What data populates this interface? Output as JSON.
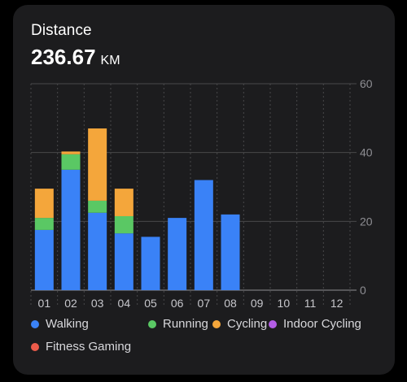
{
  "header": {
    "title": "Distance",
    "total_value": "236.67",
    "total_unit": "KM"
  },
  "colors": {
    "card_bg": "#1c1c1e",
    "grid": "#48484a",
    "walking": "#3a82f7",
    "running": "#5ac864",
    "cycling": "#f4a63b",
    "indoor_cycling": "#b35de6",
    "fitness_gaming": "#ec5b4a"
  },
  "chart_data": {
    "type": "bar",
    "stacked": true,
    "categories": [
      "01",
      "02",
      "03",
      "04",
      "05",
      "06",
      "07",
      "08",
      "09",
      "10",
      "11",
      "12"
    ],
    "series": [
      {
        "name": "Walking",
        "color": "#3a82f7",
        "values": [
          17.5,
          35,
          22.5,
          16.5,
          15.5,
          21,
          32,
          22,
          0,
          0,
          0,
          0
        ]
      },
      {
        "name": "Running",
        "color": "#5ac864",
        "values": [
          3.5,
          4.5,
          3.5,
          5,
          0,
          0,
          0,
          0,
          0,
          0,
          0,
          0
        ]
      },
      {
        "name": "Cycling",
        "color": "#f4a63b",
        "values": [
          8.5,
          0.8,
          21,
          8,
          0,
          0,
          0,
          0,
          0,
          0,
          0,
          0
        ]
      },
      {
        "name": "Indoor Cycling",
        "color": "#b35de6",
        "values": [
          0,
          0,
          0,
          0,
          0,
          0,
          0,
          0,
          0,
          0,
          0,
          0
        ]
      },
      {
        "name": "Fitness Gaming",
        "color": "#ec5b4a",
        "values": [
          0,
          0,
          0,
          0,
          0,
          0,
          0,
          0,
          0,
          0,
          0,
          0
        ]
      }
    ],
    "yticks": [
      "0",
      "20",
      "40",
      "60"
    ],
    "ylim": [
      0,
      60
    ],
    "y_axis_position": "right",
    "grid": true,
    "legend_position": "bottom",
    "title": "Distance",
    "xlabel": "",
    "ylabel": ""
  }
}
